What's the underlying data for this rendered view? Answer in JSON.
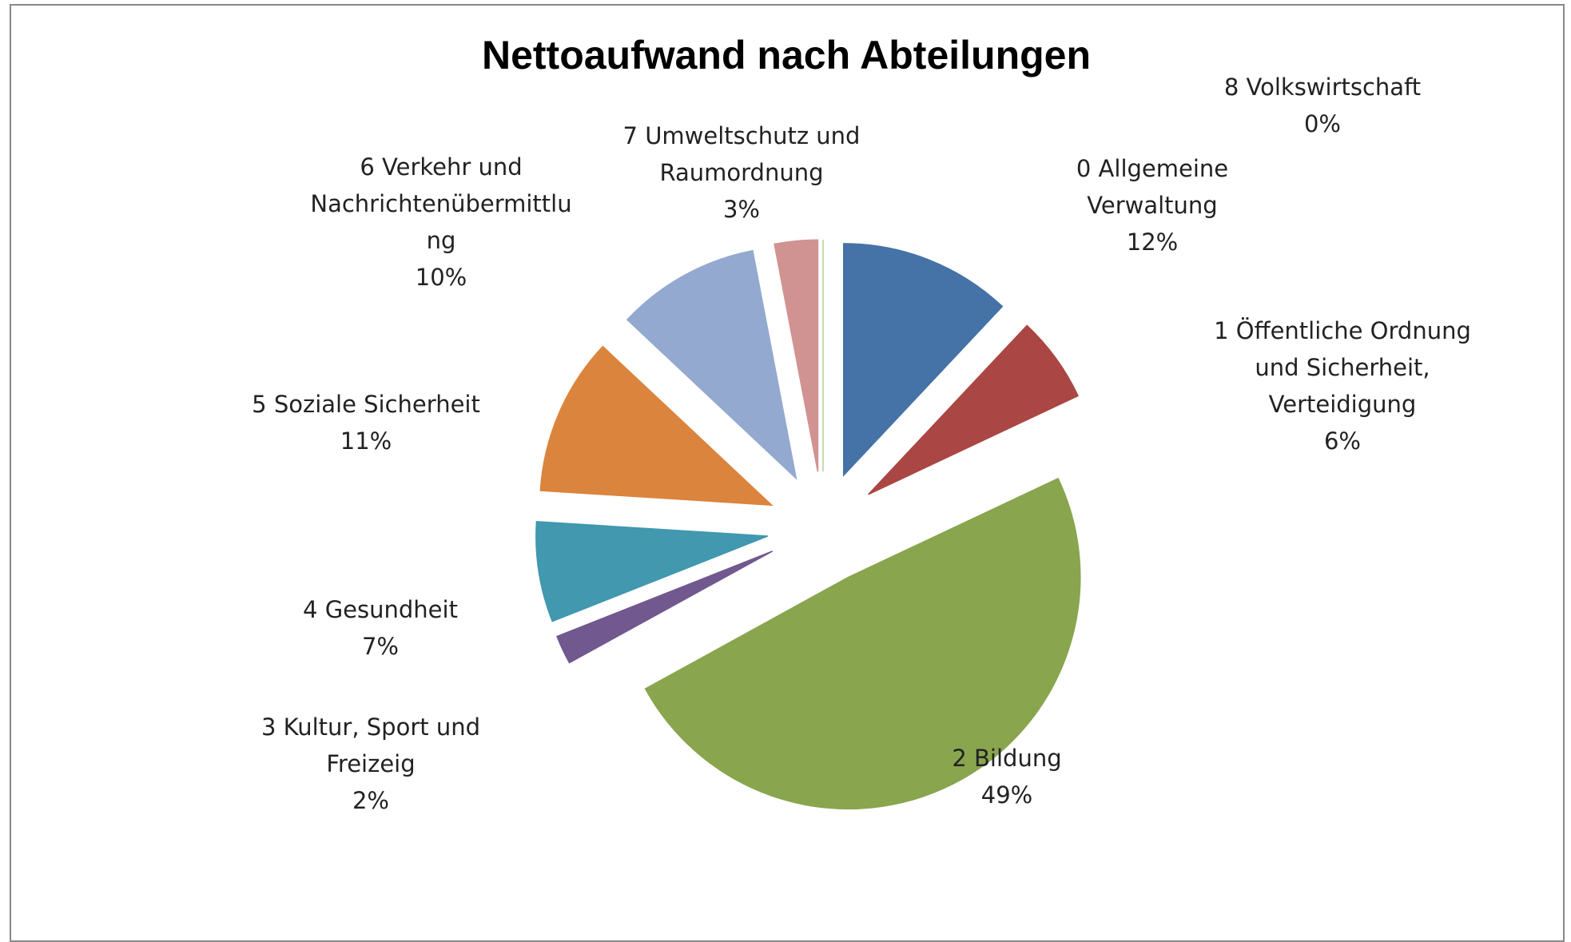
{
  "chart_data": {
    "type": "pie",
    "title": "Nettoaufwand nach Abteilungen",
    "categories": [
      "0 Allgemeine Verwaltung",
      "1 Öffentliche Ordnung und Sicherheit, Verteidigung",
      "2 Bildung",
      "3 Kultur, Sport und Freizeig",
      "4 Gesundheit",
      "5 Soziale Sicherheit",
      "6 Verkehr und Nachrichtenübermittlung",
      "7 Umweltschutz und Raumordnung",
      "8 Volkswirtschaft"
    ],
    "values": [
      12,
      6,
      49,
      2,
      7,
      11,
      10,
      3,
      0
    ],
    "value_labels": [
      "12%",
      "6%",
      "49%",
      "2%",
      "7%",
      "11%",
      "10%",
      "3%",
      "0%"
    ],
    "colors": [
      "#4572a7",
      "#aa4643",
      "#89a54e",
      "#71588f",
      "#4198af",
      "#db843d",
      "#93a9cf",
      "#d19392",
      "#b9cd96"
    ]
  }
}
